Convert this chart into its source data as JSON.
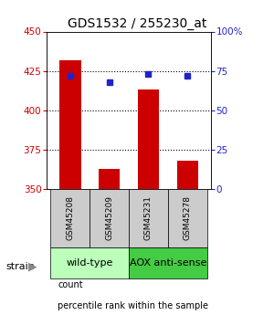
{
  "title": "GDS1532 / 255230_at",
  "samples": [
    "GSM45208",
    "GSM45209",
    "GSM45231",
    "GSM45278"
  ],
  "counts": [
    432,
    363,
    413,
    368
  ],
  "percentiles": [
    72,
    68,
    73,
    72
  ],
  "ylim_left": [
    350,
    450
  ],
  "ylim_right": [
    0,
    100
  ],
  "yticks_left": [
    350,
    375,
    400,
    425,
    450
  ],
  "yticks_right": [
    0,
    25,
    50,
    75,
    100
  ],
  "ytick_labels_right": [
    "0",
    "25",
    "50",
    "75",
    "100%"
  ],
  "bar_color": "#cc0000",
  "dot_color": "#2222cc",
  "bar_width": 0.55,
  "groups": [
    "wild-type",
    "AOX anti-sense"
  ],
  "group_colors": [
    "#bbffbb",
    "#44cc44"
  ],
  "label_color_left": "#cc0000",
  "label_color_right": "#2222cc",
  "strain_label": "strain",
  "legend_count": "count",
  "legend_percentile": "percentile rank within the sample",
  "sample_box_color": "#cccccc",
  "title_fontsize": 10,
  "tick_fontsize": 7.5,
  "sample_fontsize": 6.5,
  "group_fontsize": 8,
  "legend_fontsize": 7
}
